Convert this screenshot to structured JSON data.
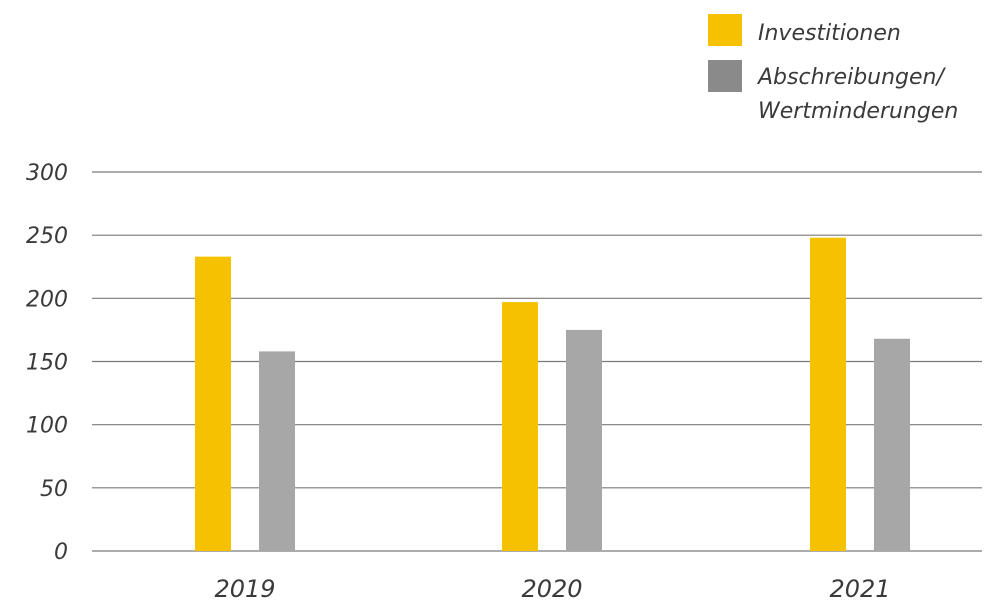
{
  "chart_data": {
    "type": "bar",
    "title": "",
    "xlabel": "",
    "ylabel": "",
    "categories": [
      "2019",
      "2020",
      "2021"
    ],
    "series": [
      {
        "name": "Investitionen",
        "values": [
          233,
          197,
          248
        ],
        "color": "#f6c200"
      },
      {
        "name": "Abschreibungen/ Wertminderungen",
        "values": [
          158,
          175,
          168
        ],
        "color": "#a7a7a7"
      }
    ],
    "ylim": [
      0,
      300
    ],
    "yticks": [
      "0",
      "50",
      "100",
      "150",
      "200",
      "250",
      "300"
    ],
    "grid": true,
    "legend_position": "top-right"
  },
  "legend": [
    {
      "lines": [
        "Investitionen"
      ],
      "swatch_color": "#f6c200"
    },
    {
      "lines": [
        "Abschreibungen/",
        "Wertminderungen"
      ],
      "swatch_color": "#8a8a8a"
    }
  ]
}
